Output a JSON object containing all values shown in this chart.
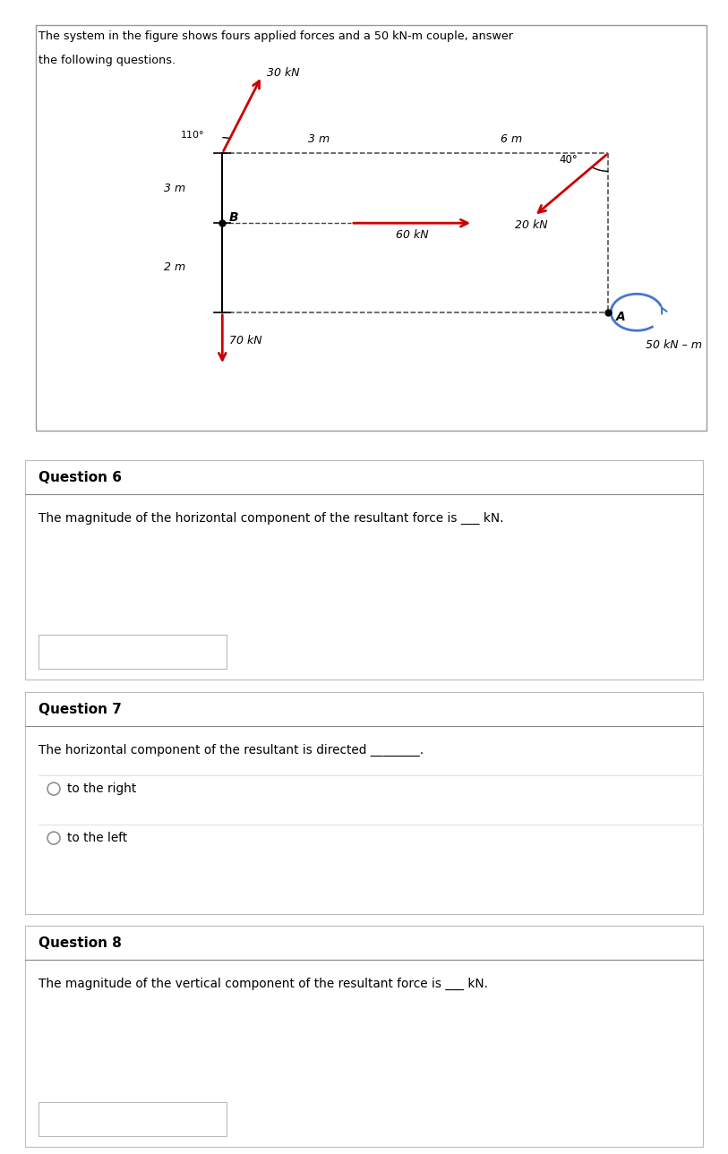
{
  "bg_color": "#ffffff",
  "force_color": "#cc0000",
  "moment_color": "#4477cc",
  "dashed_color": "#444444",
  "solid_color": "#000000",
  "intro_line1": "The system in the figure shows fours applied forces and a 50 kN-m couple, answer",
  "intro_line2": "the following questions.",
  "label_30kN": "30 kN",
  "label_20kN": "20 kN",
  "label_60kN": "60 kN",
  "label_70kN": "70 kN",
  "label_50kNm": "50 kN – m",
  "label_3m_top": "3 m",
  "label_6m_top": "6 m",
  "label_3m_left": "3 m",
  "label_2m_left": "2 m",
  "label_110": "110°",
  "label_40": "40°",
  "label_B": "B",
  "label_A": "A",
  "q6_title": "Question 6",
  "q6_text": "The magnitude of the horizontal component of the resultant force is ___ kN.",
  "q7_title": "Question 7",
  "q7_text": "The horizontal component of the resultant is directed ________.",
  "q7_opt1": "to the right",
  "q7_opt2": "to the left",
  "q8_title": "Question 8",
  "q8_text": "The magnitude of the vertical component of the resultant force is ___ kN."
}
